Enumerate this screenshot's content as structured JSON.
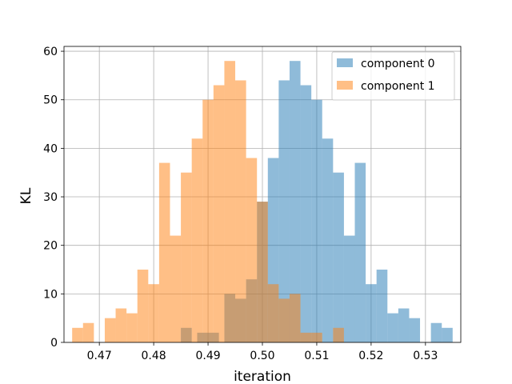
{
  "chart_data": {
    "type": "bar",
    "title": "",
    "xlabel": "iteration",
    "ylabel": "KL",
    "xlim": [
      0.4635,
      0.5365
    ],
    "ylim": [
      0,
      61
    ],
    "grid": true,
    "legend_position": "top-right",
    "xticks": [
      0.47,
      0.48,
      0.49,
      0.5,
      0.51,
      0.52,
      0.53
    ],
    "xtick_labels": [
      "0.47",
      "0.48",
      "0.49",
      "0.50",
      "0.51",
      "0.52",
      "0.53"
    ],
    "yticks": [
      0,
      10,
      20,
      30,
      40,
      50,
      60
    ],
    "ytick_labels": [
      "0",
      "10",
      "20",
      "30",
      "40",
      "50",
      "60"
    ],
    "series": [
      {
        "name": "component 0",
        "color": "#1f77b4",
        "alpha": 0.5,
        "bins": [
          {
            "x0": 0.485,
            "x1": 0.487,
            "value": 3
          },
          {
            "x0": 0.488,
            "x1": 0.49,
            "value": 2
          },
          {
            "x0": 0.49,
            "x1": 0.492,
            "value": 2
          },
          {
            "x0": 0.493,
            "x1": 0.495,
            "value": 10
          },
          {
            "x0": 0.495,
            "x1": 0.497,
            "value": 9
          },
          {
            "x0": 0.497,
            "x1": 0.499,
            "value": 13
          },
          {
            "x0": 0.499,
            "x1": 0.501,
            "value": 29
          },
          {
            "x0": 0.501,
            "x1": 0.503,
            "value": 38
          },
          {
            "x0": 0.503,
            "x1": 0.505,
            "value": 54
          },
          {
            "x0": 0.505,
            "x1": 0.507,
            "value": 58
          },
          {
            "x0": 0.507,
            "x1": 0.509,
            "value": 53
          },
          {
            "x0": 0.509,
            "x1": 0.511,
            "value": 50
          },
          {
            "x0": 0.511,
            "x1": 0.513,
            "value": 42
          },
          {
            "x0": 0.513,
            "x1": 0.515,
            "value": 35
          },
          {
            "x0": 0.515,
            "x1": 0.517,
            "value": 22
          },
          {
            "x0": 0.517,
            "x1": 0.519,
            "value": 37
          },
          {
            "x0": 0.519,
            "x1": 0.521,
            "value": 12
          },
          {
            "x0": 0.521,
            "x1": 0.523,
            "value": 15
          },
          {
            "x0": 0.523,
            "x1": 0.525,
            "value": 6
          },
          {
            "x0": 0.525,
            "x1": 0.527,
            "value": 7
          },
          {
            "x0": 0.527,
            "x1": 0.529,
            "value": 5
          },
          {
            "x0": 0.531,
            "x1": 0.533,
            "value": 4
          },
          {
            "x0": 0.533,
            "x1": 0.535,
            "value": 3
          }
        ]
      },
      {
        "name": "component 1",
        "color": "#ff7f0e",
        "alpha": 0.5,
        "bins": [
          {
            "x0": 0.465,
            "x1": 0.467,
            "value": 3
          },
          {
            "x0": 0.467,
            "x1": 0.469,
            "value": 4
          },
          {
            "x0": 0.471,
            "x1": 0.473,
            "value": 5
          },
          {
            "x0": 0.473,
            "x1": 0.475,
            "value": 7
          },
          {
            "x0": 0.475,
            "x1": 0.477,
            "value": 6
          },
          {
            "x0": 0.477,
            "x1": 0.479,
            "value": 15
          },
          {
            "x0": 0.479,
            "x1": 0.481,
            "value": 12
          },
          {
            "x0": 0.481,
            "x1": 0.483,
            "value": 37
          },
          {
            "x0": 0.483,
            "x1": 0.485,
            "value": 22
          },
          {
            "x0": 0.485,
            "x1": 0.487,
            "value": 35
          },
          {
            "x0": 0.487,
            "x1": 0.489,
            "value": 42
          },
          {
            "x0": 0.489,
            "x1": 0.491,
            "value": 50
          },
          {
            "x0": 0.491,
            "x1": 0.493,
            "value": 53
          },
          {
            "x0": 0.493,
            "x1": 0.495,
            "value": 58
          },
          {
            "x0": 0.495,
            "x1": 0.497,
            "value": 54
          },
          {
            "x0": 0.497,
            "x1": 0.499,
            "value": 38
          },
          {
            "x0": 0.499,
            "x1": 0.501,
            "value": 29
          },
          {
            "x0": 0.501,
            "x1": 0.503,
            "value": 12
          },
          {
            "x0": 0.503,
            "x1": 0.505,
            "value": 9
          },
          {
            "x0": 0.505,
            "x1": 0.507,
            "value": 10
          },
          {
            "x0": 0.507,
            "x1": 0.509,
            "value": 2
          },
          {
            "x0": 0.509,
            "x1": 0.511,
            "value": 2
          },
          {
            "x0": 0.513,
            "x1": 0.515,
            "value": 3
          }
        ]
      }
    ]
  }
}
